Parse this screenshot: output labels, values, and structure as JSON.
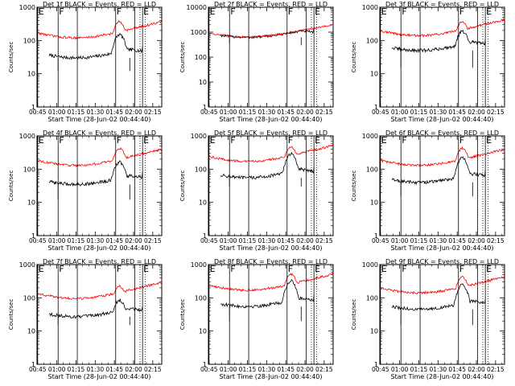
{
  "chart_data": [
    {
      "type": "line",
      "title": "Det 1f BLACK = Events, RED = LLD",
      "xlabel": "Start Time (28-Jun-02 00:44:40)",
      "ylabel": "Counts/sec",
      "x_ticks": [
        "00:45",
        "01:00",
        "01:15",
        "01:30",
        "01:45",
        "02:00",
        "02:15"
      ],
      "xlim_minutes": [
        -0.5,
        97
      ],
      "ylim": [
        1,
        1000
      ],
      "y_ticks": [
        "1",
        "10",
        "100",
        "1000"
      ],
      "markers": [
        {
          "label": "E",
          "t": 0
        },
        {
          "label": "F",
          "t": 16
        },
        {
          "label": "",
          "t": 31
        },
        {
          "label": "F",
          "t": 61
        },
        {
          "label": "",
          "t": 76
        },
        {
          "label": "E",
          "t": 82
        }
      ],
      "dotted_lines": [
        80,
        84
      ],
      "series": [
        {
          "name": "Events",
          "color": "#000000",
          "base": 30,
          "peak": 140,
          "drops": [
            [
              16,
              12
            ],
            [
              72,
              12
            ]
          ],
          "t_start": 9,
          "t_end": 82
        },
        {
          "name": "LLD",
          "color": "#ff0000",
          "base": 120,
          "peak": 330,
          "t_start": 0,
          "t_end": 97
        }
      ]
    },
    {
      "type": "line",
      "title": "Det 2f BLACK = Events, RED = LLD",
      "xlabel": "Start Time (28-Jun-02 00:44:40)",
      "ylabel": "Counts/sec",
      "x_ticks": [
        "00:45",
        "01:00",
        "01:15",
        "01:30",
        "01:45",
        "02:00",
        "02:15"
      ],
      "xlim_minutes": [
        -0.5,
        97
      ],
      "ylim": [
        1,
        10000
      ],
      "y_ticks": [
        "1",
        "10",
        "100",
        "1000",
        "10000"
      ],
      "markers": [
        {
          "label": "E",
          "t": 0
        },
        {
          "label": "F",
          "t": 16
        },
        {
          "label": "",
          "t": 31
        },
        {
          "label": "F",
          "t": 61
        },
        {
          "label": "",
          "t": 76
        },
        {
          "label": "E",
          "t": 82
        }
      ],
      "dotted_lines": [
        80,
        84
      ],
      "series": [
        {
          "name": "Events",
          "color": "#000000",
          "base": 620,
          "peak": 720,
          "drops": [
            [
              16,
              350
            ],
            [
              72,
              300
            ]
          ],
          "t_start": 9,
          "t_end": 82
        },
        {
          "name": "LLD",
          "color": "#ff0000",
          "base": 650,
          "peak": 780,
          "t_start": 0,
          "t_end": 97
        }
      ]
    },
    {
      "type": "line",
      "title": "Det 3f BLACK = Events, RED = LLD",
      "xlabel": "Start Time (28-Jun-02 00:44:40)",
      "ylabel": "Counts/sec",
      "x_ticks": [
        "00:45",
        "01:00",
        "01:15",
        "01:30",
        "01:45",
        "02:00",
        "02:15"
      ],
      "xlim_minutes": [
        -0.5,
        97
      ],
      "ylim": [
        1,
        1000
      ],
      "y_ticks": [
        "1",
        "10",
        "100",
        "1000"
      ],
      "markers": [
        {
          "label": "E",
          "t": 0
        },
        {
          "label": "F",
          "t": 16
        },
        {
          "label": "",
          "t": 31
        },
        {
          "label": "F",
          "t": 61
        },
        {
          "label": "",
          "t": 76
        },
        {
          "label": "E",
          "t": 82
        }
      ],
      "dotted_lines": [
        80,
        84
      ],
      "series": [
        {
          "name": "Events",
          "color": "#000000",
          "base": 50,
          "peak": 170,
          "drops": [
            [
              16,
              15
            ],
            [
              72,
              15
            ]
          ],
          "t_start": 9,
          "t_end": 82
        },
        {
          "name": "LLD",
          "color": "#ff0000",
          "base": 140,
          "peak": 330,
          "t_start": 0,
          "t_end": 97
        }
      ]
    },
    {
      "type": "line",
      "title": "Det 4f BLACK = Events, RED = LLD",
      "xlabel": "Start Time (28-Jun-02 00:44:40)",
      "ylabel": "Counts/sec",
      "x_ticks": [
        "00:45",
        "01:00",
        "01:15",
        "01:30",
        "01:45",
        "02:00",
        "02:15"
      ],
      "xlim_minutes": [
        -0.5,
        97
      ],
      "ylim": [
        1,
        1000
      ],
      "y_ticks": [
        "1",
        "10",
        "100",
        "1000"
      ],
      "markers": [
        {
          "label": "E",
          "t": 0
        },
        {
          "label": "F",
          "t": 16
        },
        {
          "label": "",
          "t": 31
        },
        {
          "label": "F",
          "t": 61
        },
        {
          "label": "",
          "t": 76
        },
        {
          "label": "E",
          "t": 82
        }
      ],
      "dotted_lines": [
        80,
        84
      ],
      "series": [
        {
          "name": "Events",
          "color": "#000000",
          "base": 35,
          "peak": 150,
          "drops": [
            [
              16,
              12
            ],
            [
              72,
              12
            ]
          ],
          "t_start": 9,
          "t_end": 82
        },
        {
          "name": "LLD",
          "color": "#ff0000",
          "base": 130,
          "peak": 380,
          "t_start": 0,
          "t_end": 97
        }
      ]
    },
    {
      "type": "line",
      "title": "Det 5f BLACK = Events, RED = LLD",
      "xlabel": "Start Time (28-Jun-02 00:44:40)",
      "ylabel": "Counts/sec",
      "x_ticks": [
        "00:45",
        "01:00",
        "01:15",
        "01:30",
        "01:45",
        "02:00",
        "02:15"
      ],
      "xlim_minutes": [
        -0.5,
        97
      ],
      "ylim": [
        1,
        1000
      ],
      "y_ticks": [
        "1",
        "10",
        "100",
        "1000"
      ],
      "markers": [
        {
          "label": "E",
          "t": 0
        },
        {
          "label": "F",
          "t": 16
        },
        {
          "label": "",
          "t": 31
        },
        {
          "label": "F",
          "t": 61
        },
        {
          "label": "",
          "t": 76
        },
        {
          "label": "E",
          "t": 82
        }
      ],
      "dotted_lines": [
        80,
        84
      ],
      "series": [
        {
          "name": "Events",
          "color": "#000000",
          "base": 55,
          "peak": 270,
          "drops": [
            [
              16,
              30
            ],
            [
              72,
              30
            ]
          ],
          "t_start": 9,
          "t_end": 82
        },
        {
          "name": "LLD",
          "color": "#ff0000",
          "base": 170,
          "peak": 420,
          "t_start": 0,
          "t_end": 97
        }
      ]
    },
    {
      "type": "line",
      "title": "Det 6f BLACK = Events, RED = LLD",
      "xlabel": "Start Time (28-Jun-02 00:44:40)",
      "ylabel": "Counts/sec",
      "x_ticks": [
        "00:45",
        "01:00",
        "01:15",
        "01:30",
        "01:45",
        "02:00",
        "02:15"
      ],
      "xlim_minutes": [
        -0.5,
        97
      ],
      "ylim": [
        1,
        1000
      ],
      "y_ticks": [
        "1",
        "10",
        "100",
        "1000"
      ],
      "markers": [
        {
          "label": "E",
          "t": 0
        },
        {
          "label": "F",
          "t": 16
        },
        {
          "label": "",
          "t": 31
        },
        {
          "label": "F",
          "t": 61
        },
        {
          "label": "",
          "t": 76
        },
        {
          "label": "E",
          "t": 82
        }
      ],
      "dotted_lines": [
        80,
        84
      ],
      "series": [
        {
          "name": "Events",
          "color": "#000000",
          "base": 40,
          "peak": 200,
          "drops": [
            [
              16,
              15
            ],
            [
              72,
              15
            ]
          ],
          "t_start": 9,
          "t_end": 82
        },
        {
          "name": "LLD",
          "color": "#ff0000",
          "base": 130,
          "peak": 380,
          "t_start": 0,
          "t_end": 97
        }
      ]
    },
    {
      "type": "line",
      "title": "Det 7f BLACK = Events, RED = LLD",
      "xlabel": "Start Time (28-Jun-02 00:44:40)",
      "ylabel": "Counts/sec",
      "x_ticks": [
        "00:45",
        "01:00",
        "01:15",
        "01:30",
        "01:45",
        "02:00",
        "02:15"
      ],
      "xlim_minutes": [
        -0.5,
        97
      ],
      "ylim": [
        1,
        1000
      ],
      "y_ticks": [
        "1",
        "10",
        "100",
        "1000"
      ],
      "markers": [
        {
          "label": "E",
          "t": 0
        },
        {
          "label": "F",
          "t": 16
        },
        {
          "label": "",
          "t": 31
        },
        {
          "label": "F",
          "t": 61
        },
        {
          "label": "",
          "t": 76
        },
        {
          "label": "E",
          "t": 82
        }
      ],
      "dotted_lines": [
        80,
        84
      ],
      "series": [
        {
          "name": "Events",
          "color": "#000000",
          "base": 27,
          "peak": 75,
          "drops": [
            [
              16,
              15
            ],
            [
              72,
              15
            ]
          ],
          "t_start": 9,
          "t_end": 82
        },
        {
          "name": "LLD",
          "color": "#ff0000",
          "base": 95,
          "peak": 190,
          "t_start": 0,
          "t_end": 97
        }
      ]
    },
    {
      "type": "line",
      "title": "Det 8f BLACK = Events, RED = LLD",
      "xlabel": "Start Time (28-Jun-02 00:44:40)",
      "ylabel": "Counts/sec",
      "x_ticks": [
        "00:45",
        "01:00",
        "01:15",
        "01:30",
        "01:45",
        "02:00",
        "02:15"
      ],
      "xlim_minutes": [
        -0.5,
        97
      ],
      "ylim": [
        1,
        1000
      ],
      "y_ticks": [
        "1",
        "10",
        "100",
        "1000"
      ],
      "markers": [
        {
          "label": "E",
          "t": 0
        },
        {
          "label": "F",
          "t": 16
        },
        {
          "label": "",
          "t": 31
        },
        {
          "label": "F",
          "t": 61
        },
        {
          "label": "",
          "t": 76
        },
        {
          "label": "E",
          "t": 82
        }
      ],
      "dotted_lines": [
        80,
        84
      ],
      "series": [
        {
          "name": "Events",
          "color": "#000000",
          "base": 55,
          "peak": 300,
          "drops": [
            [
              16,
              20
            ],
            [
              72,
              20
            ]
          ],
          "t_start": 9,
          "t_end": 82
        },
        {
          "name": "LLD",
          "color": "#ff0000",
          "base": 170,
          "peak": 450,
          "t_start": 0,
          "t_end": 97
        }
      ]
    },
    {
      "type": "line",
      "title": "Det 9f BLACK = Events, RED = LLD",
      "xlabel": "Start Time (28-Jun-02 00:44:40)",
      "ylabel": "Counts/sec",
      "x_ticks": [
        "00:45",
        "01:00",
        "01:15",
        "01:30",
        "01:45",
        "02:00",
        "02:15"
      ],
      "xlim_minutes": [
        -0.5,
        97
      ],
      "ylim": [
        1,
        1000
      ],
      "y_ticks": [
        "1",
        "10",
        "100",
        "1000"
      ],
      "markers": [
        {
          "label": "E",
          "t": 0
        },
        {
          "label": "F",
          "t": 16
        },
        {
          "label": "",
          "t": 31
        },
        {
          "label": "F",
          "t": 61
        },
        {
          "label": "",
          "t": 76
        },
        {
          "label": "E",
          "t": 82
        }
      ],
      "dotted_lines": [
        80,
        84
      ],
      "series": [
        {
          "name": "Events",
          "color": "#000000",
          "base": 45,
          "peak": 220,
          "drops": [
            [
              16,
              15
            ],
            [
              72,
              15
            ]
          ],
          "t_start": 9,
          "t_end": 82
        },
        {
          "name": "LLD",
          "color": "#ff0000",
          "base": 140,
          "peak": 380,
          "t_start": 0,
          "t_end": 97
        }
      ]
    }
  ]
}
